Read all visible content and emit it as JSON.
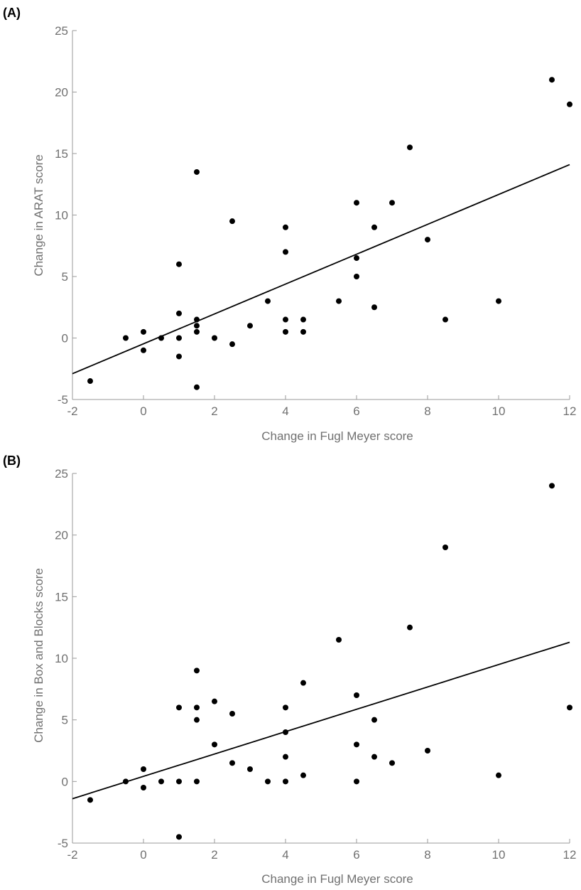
{
  "chart_data": [
    {
      "type": "scatter",
      "panel_label": "(A)",
      "xlabel": "Change in Fugl Meyer score",
      "ylabel": "Change in ARAT score",
      "xlim": [
        -2,
        12
      ],
      "ylim": [
        -5,
        25
      ],
      "xticks": [
        -2,
        0,
        2,
        4,
        6,
        8,
        10,
        12
      ],
      "yticks": [
        -5,
        0,
        5,
        10,
        15,
        20,
        25
      ],
      "grid": false,
      "points": [
        [
          -1.5,
          -3.5
        ],
        [
          -0.5,
          0
        ],
        [
          0,
          0.5
        ],
        [
          0,
          -1
        ],
        [
          0.5,
          0
        ],
        [
          1,
          6
        ],
        [
          1,
          2
        ],
        [
          1,
          0
        ],
        [
          1,
          -1.5
        ],
        [
          1.5,
          13.5
        ],
        [
          1.5,
          1.5
        ],
        [
          1.5,
          1
        ],
        [
          1.5,
          0.5
        ],
        [
          1.5,
          -4
        ],
        [
          2,
          0
        ],
        [
          2.5,
          9.5
        ],
        [
          2.5,
          -0.5
        ],
        [
          3,
          1
        ],
        [
          3.5,
          3
        ],
        [
          4,
          9
        ],
        [
          4,
          7
        ],
        [
          4,
          1.5
        ],
        [
          4,
          0.5
        ],
        [
          4.5,
          1.5
        ],
        [
          4.5,
          0.5
        ],
        [
          5.5,
          3
        ],
        [
          6,
          11
        ],
        [
          6,
          6.5
        ],
        [
          6,
          5
        ],
        [
          6.5,
          9
        ],
        [
          6.5,
          2.5
        ],
        [
          7,
          11
        ],
        [
          7.5,
          15.5
        ],
        [
          8,
          8
        ],
        [
          8.5,
          1.5
        ],
        [
          10,
          3
        ],
        [
          11.5,
          21
        ],
        [
          12,
          19
        ]
      ],
      "fit_line": [
        [
          -2,
          -2.9
        ],
        [
          12,
          14.1
        ]
      ]
    },
    {
      "type": "scatter",
      "panel_label": "(B)",
      "xlabel": "Change in Fugl Meyer score",
      "ylabel": "Change in Box and Blocks score",
      "xlim": [
        -2,
        12
      ],
      "ylim": [
        -5,
        25
      ],
      "xticks": [
        -2,
        0,
        2,
        4,
        6,
        8,
        10,
        12
      ],
      "yticks": [
        -5,
        0,
        5,
        10,
        15,
        20,
        25
      ],
      "grid": false,
      "points": [
        [
          -1.5,
          -1.5
        ],
        [
          -0.5,
          0
        ],
        [
          0,
          1
        ],
        [
          0,
          -0.5
        ],
        [
          0.5,
          0
        ],
        [
          1,
          6
        ],
        [
          1,
          0
        ],
        [
          1,
          -4.5
        ],
        [
          1.5,
          9
        ],
        [
          1.5,
          6
        ],
        [
          1.5,
          5
        ],
        [
          1.5,
          0
        ],
        [
          2,
          6.5
        ],
        [
          2,
          3
        ],
        [
          2.5,
          5.5
        ],
        [
          2.5,
          1.5
        ],
        [
          3,
          1
        ],
        [
          3.5,
          0
        ],
        [
          4,
          6
        ],
        [
          4,
          4
        ],
        [
          4,
          2
        ],
        [
          4,
          0
        ],
        [
          4.5,
          8
        ],
        [
          4.5,
          0.5
        ],
        [
          5.5,
          11.5
        ],
        [
          6,
          7
        ],
        [
          6,
          3
        ],
        [
          6,
          0
        ],
        [
          6.5,
          5
        ],
        [
          6.5,
          2
        ],
        [
          7,
          1.5
        ],
        [
          7.5,
          12.5
        ],
        [
          8,
          2.5
        ],
        [
          8.5,
          19
        ],
        [
          10,
          0.5
        ],
        [
          11.5,
          24
        ],
        [
          12,
          6
        ]
      ],
      "fit_line": [
        [
          -2,
          -1.4
        ],
        [
          12,
          11.3
        ]
      ]
    }
  ]
}
